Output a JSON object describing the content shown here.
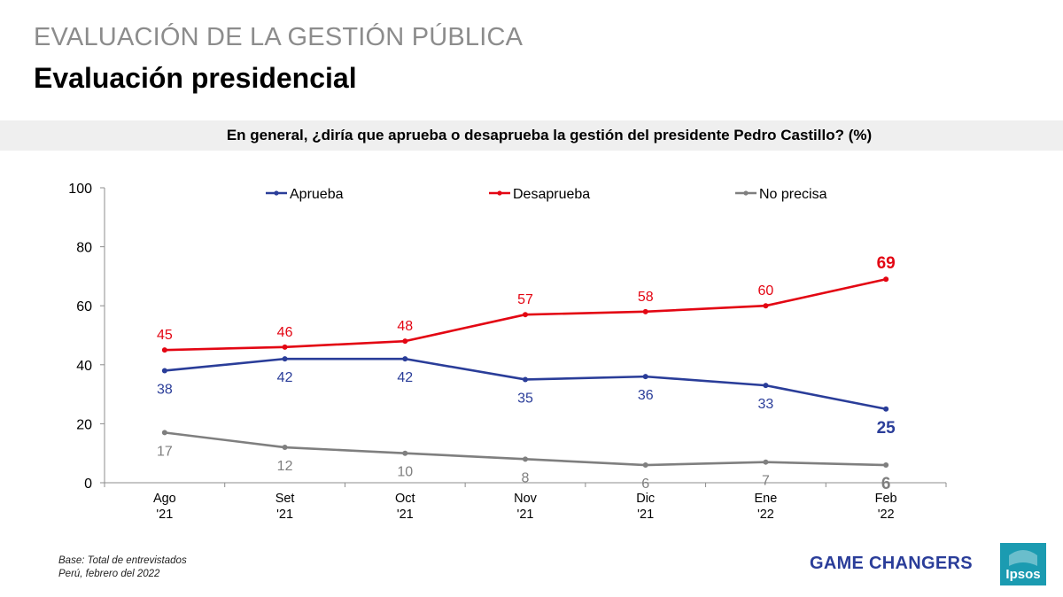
{
  "header": {
    "supertitle": "EVALUACIÓN DE LA GESTIÓN PÚBLICA",
    "title": "Evaluación presidencial",
    "question": "En general, ¿diría que aprueba o desaprueba la gestión del presidente Pedro Castillo? (%)"
  },
  "chart_data": {
    "type": "line",
    "categories": [
      [
        "Ago",
        "'21"
      ],
      [
        "Set",
        "'21"
      ],
      [
        "Oct",
        "'21"
      ],
      [
        "Nov",
        "'21"
      ],
      [
        "Dic",
        "'21"
      ],
      [
        "Ene",
        "'22"
      ],
      [
        "Feb",
        "'22"
      ]
    ],
    "ylim": [
      0,
      100
    ],
    "yticks": [
      0,
      20,
      40,
      60,
      80,
      100
    ],
    "grid": false,
    "legend_position": "top",
    "series": [
      {
        "name": "Aprueba",
        "color": "#2a3d99",
        "values": [
          38,
          42,
          42,
          35,
          36,
          33,
          25
        ],
        "label_position": "below"
      },
      {
        "name": "Desaprueba",
        "color": "#e30613",
        "values": [
          45,
          46,
          48,
          57,
          58,
          60,
          69
        ],
        "label_position": "above"
      },
      {
        "name": "No precisa",
        "color": "#7f7f7f",
        "values": [
          17,
          12,
          10,
          8,
          6,
          7,
          6
        ],
        "label_position": "below"
      }
    ]
  },
  "footer": {
    "base": "Base: Total de entrevistados",
    "place": "Perú, febrero del 2022",
    "tagline": "GAME CHANGERS",
    "logo_text": "Ipsos",
    "logo_color": "#1b9bb1"
  }
}
